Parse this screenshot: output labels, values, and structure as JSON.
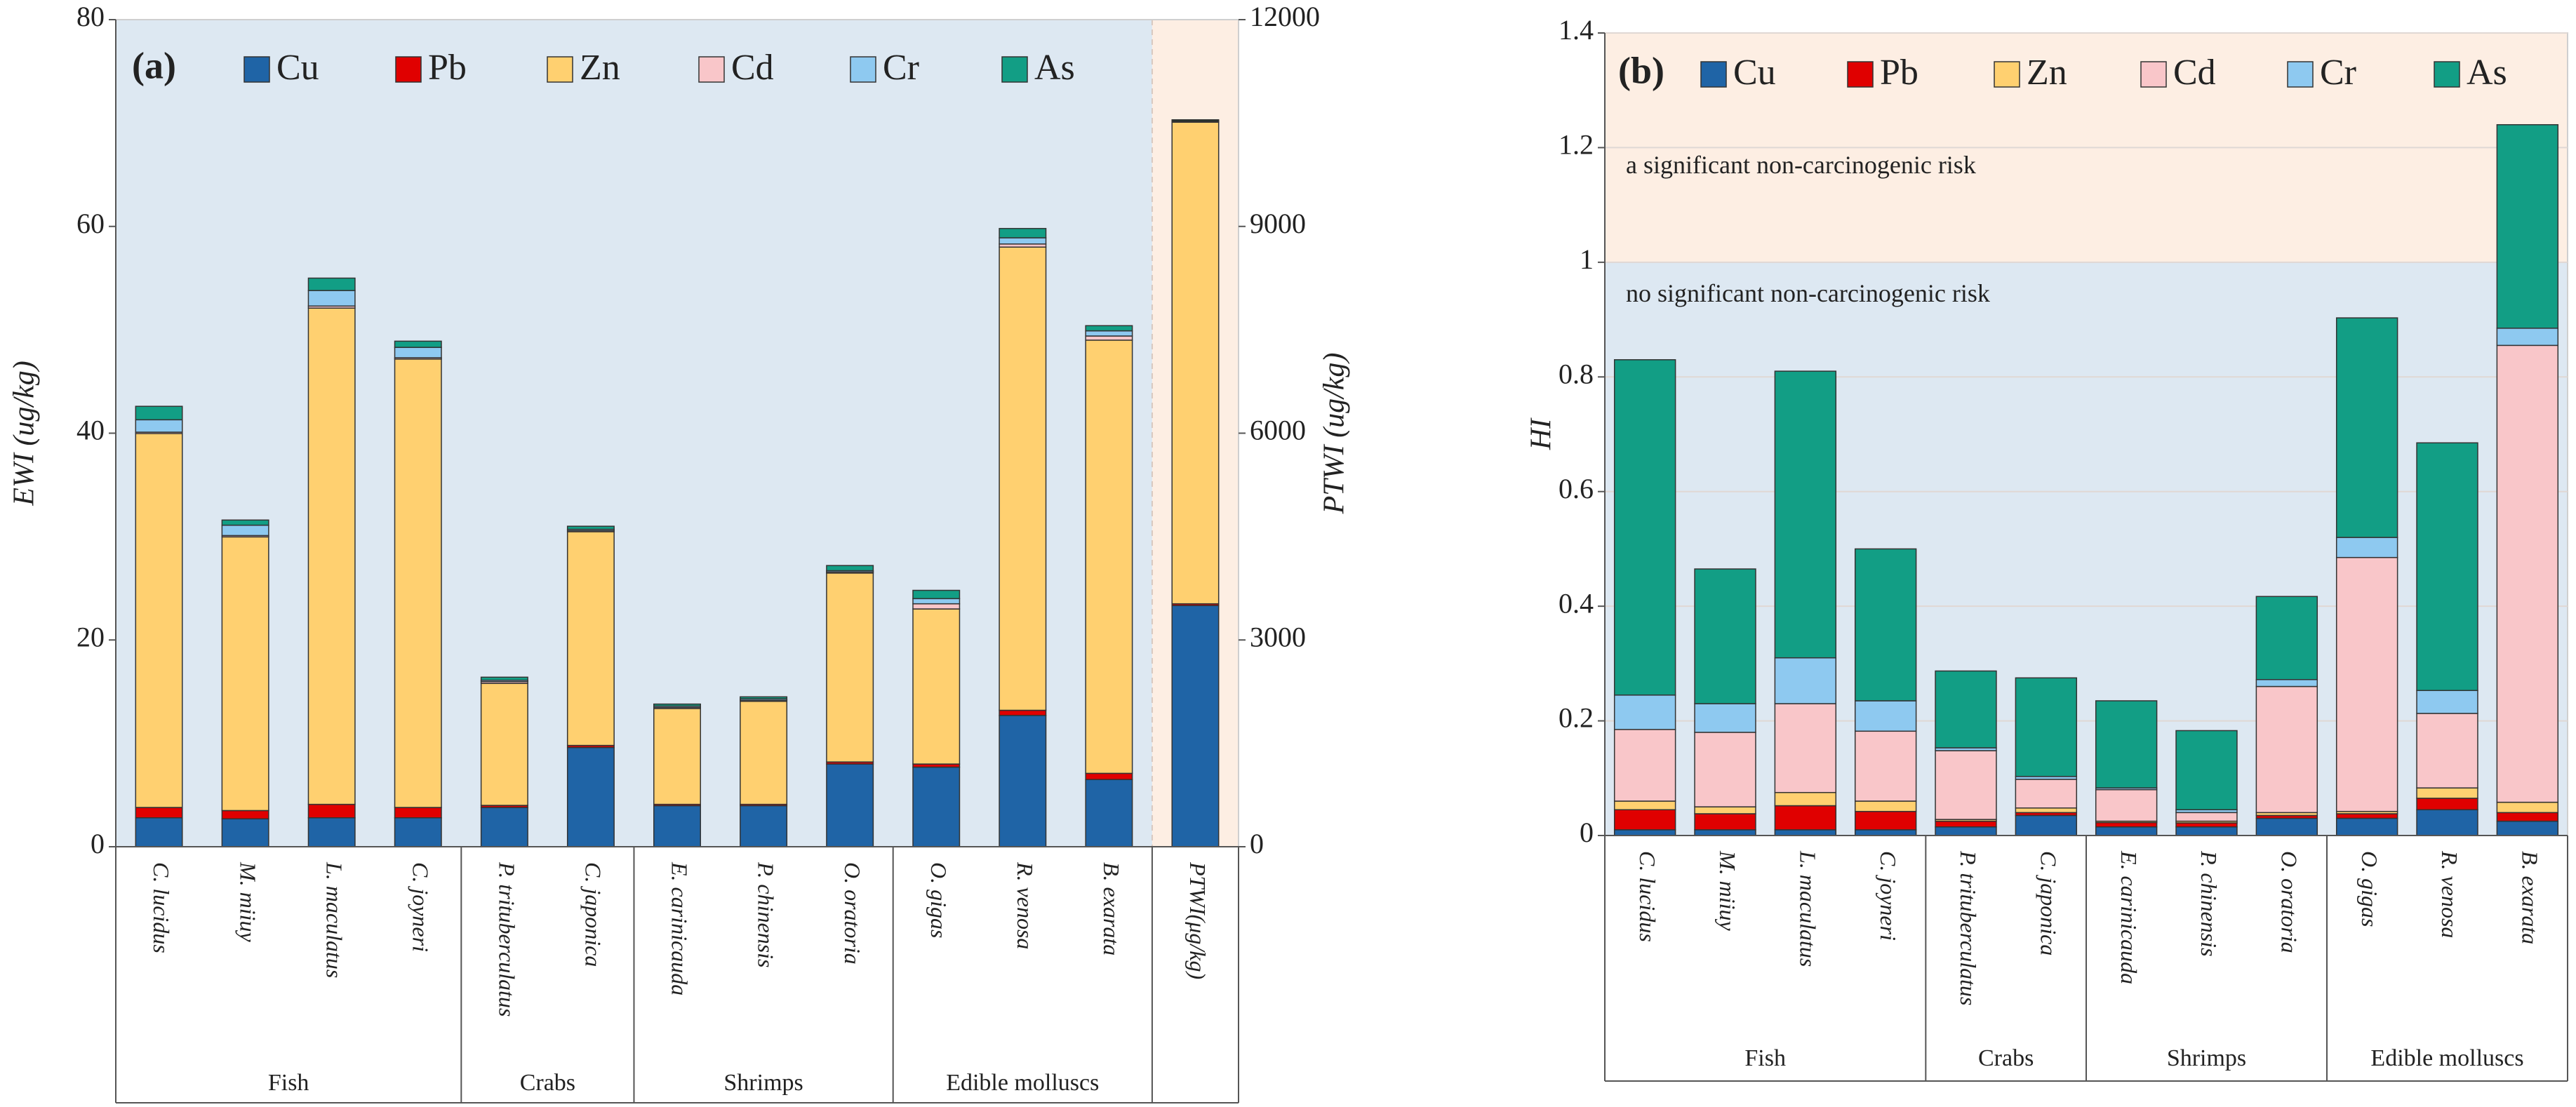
{
  "chart_data": [
    {
      "type": "bar",
      "stacked": true,
      "label": "(a)",
      "ylabel": "EWI (ug/kg)",
      "y2label": "PTWI (ug/kg)",
      "background": "#dde8f2",
      "y2_background": "#fdeee3",
      "grid": false,
      "categories": [
        "C. lucidus",
        "M. miiuy",
        "L. maculatus",
        "C. joyneri",
        "P. trituberculatus",
        "C. japonica",
        "E. carinicauda",
        "P. chinensis",
        "O. oratoria",
        "O. gigas",
        "R. venosa",
        "B. exarata",
        "PTWI(μg/kg)"
      ],
      "groups": [
        {
          "label": "Fish",
          "span": 4
        },
        {
          "label": "Crabs",
          "span": 2
        },
        {
          "label": "Shrimps",
          "span": 3
        },
        {
          "label": "Edible molluscs",
          "span": 3
        },
        {
          "span": 1
        }
      ],
      "series": [
        {
          "name": "Cu",
          "color": "#1f64a6",
          "values": [
            2.8,
            2.7,
            2.8,
            2.8,
            3.8,
            9.6,
            4.0,
            4.0,
            8.0,
            7.7,
            12.7,
            6.5,
            null
          ]
        },
        {
          "name": "Pb",
          "color": "#e00000",
          "values": [
            1.0,
            0.8,
            1.3,
            1.0,
            0.2,
            0.2,
            0.1,
            0.1,
            0.2,
            0.3,
            0.5,
            0.6,
            null
          ]
        },
        {
          "name": "Zn",
          "color": "#ffd070",
          "values": [
            36.2,
            26.5,
            48.0,
            43.4,
            11.8,
            20.7,
            9.3,
            10.0,
            18.3,
            15.0,
            44.8,
            41.9,
            null
          ]
        },
        {
          "name": "Cd",
          "color": "#f9c6c9",
          "values": [
            0.1,
            0.1,
            0.2,
            0.1,
            0.2,
            0.1,
            0.1,
            0.1,
            0.1,
            0.5,
            0.3,
            0.4,
            null
          ]
        },
        {
          "name": "Cr",
          "color": "#8ec9f0",
          "values": [
            1.2,
            1.0,
            1.5,
            1.0,
            0.1,
            0.1,
            0.1,
            0.1,
            0.1,
            0.5,
            0.6,
            0.5,
            null
          ]
        },
        {
          "name": "As",
          "color": "#129e85",
          "values": [
            1.3,
            0.5,
            1.2,
            0.6,
            0.3,
            0.3,
            0.2,
            0.2,
            0.5,
            0.8,
            0.9,
            0.5,
            null
          ]
        },
        {
          "axis": "y2",
          "color": "#1f64a6",
          "values": [
            null,
            null,
            null,
            null,
            null,
            null,
            null,
            null,
            null,
            null,
            null,
            null,
            3500
          ]
        },
        {
          "axis": "y2",
          "color": "#e00000",
          "values": [
            null,
            null,
            null,
            null,
            null,
            null,
            null,
            null,
            null,
            null,
            null,
            null,
            25
          ]
        },
        {
          "axis": "y2",
          "color": "#ffd070",
          "values": [
            null,
            null,
            null,
            null,
            null,
            null,
            null,
            null,
            null,
            null,
            null,
            null,
            7000
          ]
        },
        {
          "axis": "y2",
          "color": "#1a3a2a",
          "values": [
            null,
            null,
            null,
            null,
            null,
            null,
            null,
            null,
            null,
            null,
            null,
            null,
            7
          ]
        },
        {
          "axis": "y2",
          "color": "#1a3a2a",
          "values": [
            null,
            null,
            null,
            null,
            null,
            null,
            null,
            null,
            null,
            null,
            null,
            null,
            15
          ]
        }
      ],
      "ylim": [
        0,
        80
      ],
      "yticks": [
        0,
        20,
        40,
        60,
        80
      ],
      "y2lim": [
        0,
        12000
      ],
      "y2ticks": [
        0,
        3000,
        6000,
        9000,
        12000
      ]
    },
    {
      "type": "bar",
      "stacked": true,
      "label": "(b)",
      "ylabel": "HI",
      "grid": true,
      "threshold": 1,
      "below_label": "no significant non-carcinogenic risk",
      "above_label": "a significant non-carcinogenic risk",
      "below_color": "#dde8f2",
      "above_color": "#fdeee3",
      "categories": [
        "C. lucidus",
        "M. miiuy",
        "L. maculatus",
        "C. joyneri",
        "P. trituberculatus",
        "C. japonica",
        "E. carinicauda",
        "P. chinensis",
        "O. oratoria",
        "O. gigas",
        "R. venosa",
        "B. exarata"
      ],
      "groups": [
        {
          "label": "Fish",
          "span": 4
        },
        {
          "label": "Crabs",
          "span": 2
        },
        {
          "label": "Shrimps",
          "span": 3
        },
        {
          "label": "Edible molluscs",
          "span": 3
        }
      ],
      "series": [
        {
          "name": "Cu",
          "color": "#1f64a6",
          "values": [
            0.01,
            0.01,
            0.01,
            0.01,
            0.015,
            0.035,
            0.015,
            0.015,
            0.03,
            0.03,
            0.045,
            0.025
          ]
        },
        {
          "name": "Pb",
          "color": "#e00000",
          "values": [
            0.035,
            0.028,
            0.042,
            0.032,
            0.01,
            0.005,
            0.008,
            0.007,
            0.005,
            0.008,
            0.02,
            0.015
          ]
        },
        {
          "name": "Zn",
          "color": "#ffd070",
          "values": [
            0.015,
            0.012,
            0.023,
            0.018,
            0.003,
            0.008,
            0.002,
            0.003,
            0.005,
            0.004,
            0.018,
            0.018
          ]
        },
        {
          "name": "Cd",
          "color": "#f9c6c9",
          "values": [
            0.125,
            0.13,
            0.155,
            0.122,
            0.12,
            0.05,
            0.055,
            0.015,
            0.22,
            0.443,
            0.13,
            0.797
          ]
        },
        {
          "name": "Cr",
          "color": "#8ec9f0",
          "values": [
            0.06,
            0.05,
            0.08,
            0.053,
            0.005,
            0.005,
            0.003,
            0.005,
            0.012,
            0.035,
            0.04,
            0.03
          ]
        },
        {
          "name": "As",
          "color": "#129e85",
          "values": [
            0.585,
            0.235,
            0.5,
            0.265,
            0.134,
            0.172,
            0.152,
            0.138,
            0.145,
            0.383,
            0.432,
            0.355
          ]
        }
      ],
      "ylim": [
        0,
        1.4
      ],
      "yticks": [
        0,
        0.2,
        0.4,
        0.6,
        0.8,
        1,
        1.2,
        1.4
      ]
    }
  ]
}
